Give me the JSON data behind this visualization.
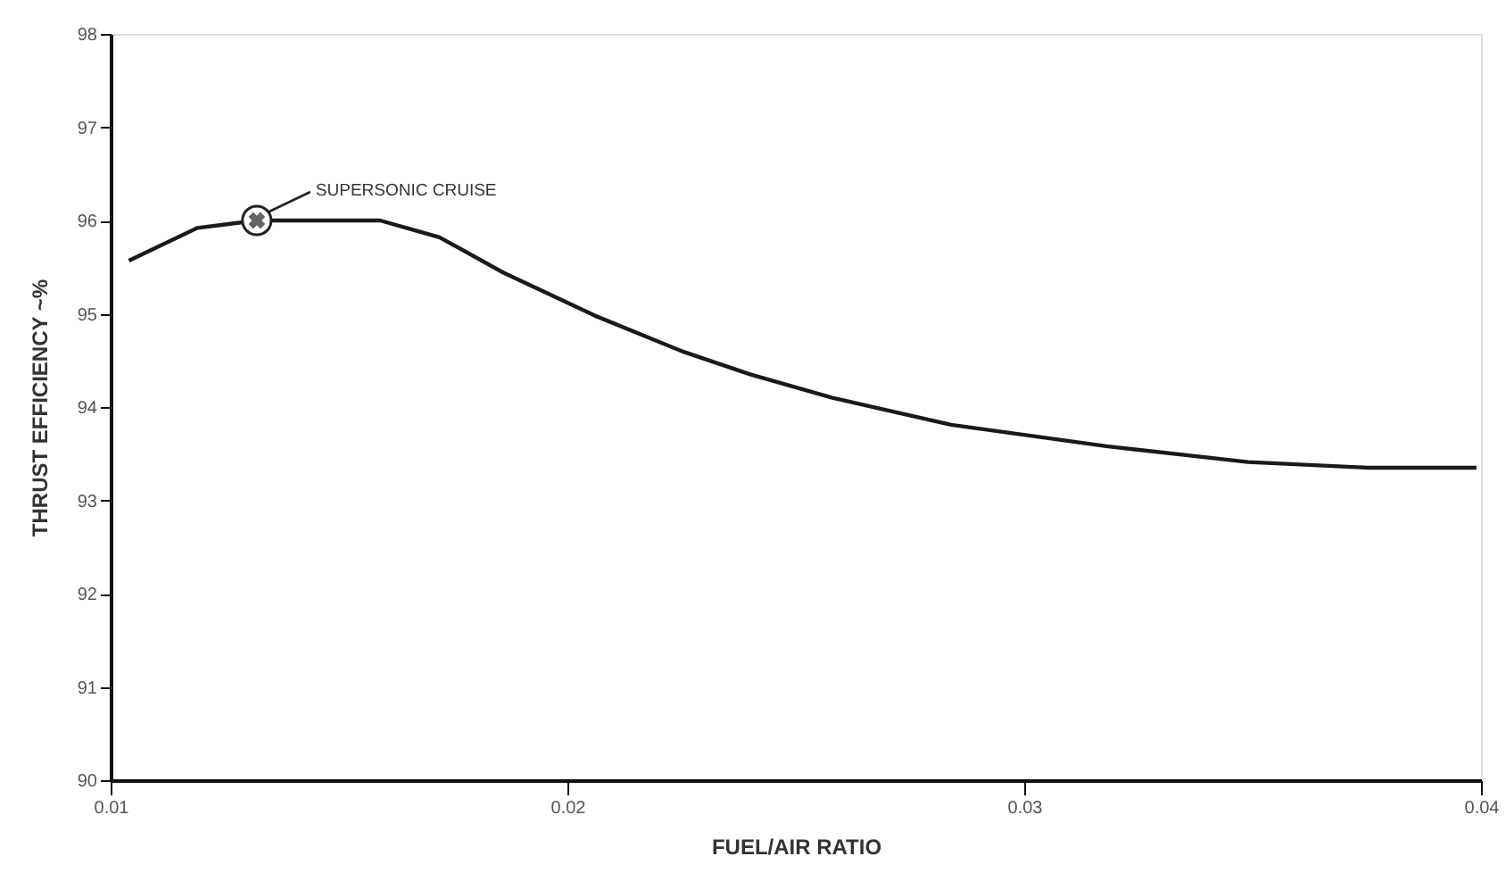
{
  "chart_data": {
    "type": "line",
    "xlabel": "FUEL/AIR RATIO",
    "ylabel": "THRUST EFFICIENCY ~%",
    "x": [
      0.0104,
      0.0119,
      0.0132,
      0.0159,
      0.0172,
      0.0186,
      0.0206,
      0.0225,
      0.024,
      0.0258,
      0.0284,
      0.0318,
      0.0349,
      0.0375,
      0.0399
    ],
    "series": [
      {
        "color": "#1a1a1a",
        "values": [
          95.57,
          95.92,
          96.0,
          96.0,
          95.82,
          95.44,
          94.98,
          94.6,
          94.35,
          94.1,
          93.81,
          93.58,
          93.41,
          93.35,
          93.35
        ]
      }
    ],
    "xlim": [
      0.01,
      0.04
    ],
    "xticks": [
      0.01,
      0.02,
      0.03,
      0.04
    ],
    "ylim": [
      90,
      98
    ],
    "yticks": [
      90,
      91,
      92,
      93,
      94,
      95,
      96,
      97,
      98
    ],
    "grid": false,
    "marker": "none",
    "line_style": "solid",
    "annotations": [
      {
        "text": "SUPERSONIC CRUISE",
        "x": 0.0132,
        "y": 96.0
      }
    ]
  }
}
